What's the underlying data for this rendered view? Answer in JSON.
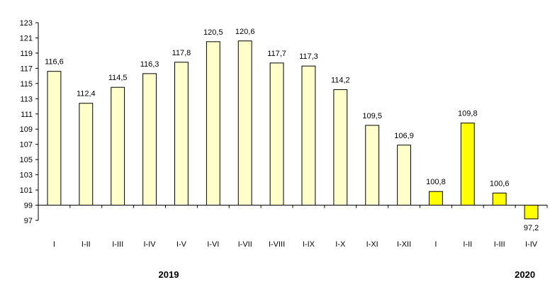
{
  "chart_data": {
    "type": "bar",
    "categories": [
      "I",
      "I-II",
      "I-III",
      "I-IV",
      "I-V",
      "I-VI",
      "I-VII",
      "I-VIII",
      "I-IX",
      "I-X",
      "I-XI",
      "I-XII",
      "I",
      "I-II",
      "I-III",
      "I-IV"
    ],
    "values": [
      116.6,
      112.4,
      114.5,
      116.3,
      117.8,
      120.5,
      120.6,
      117.7,
      117.3,
      114.2,
      109.5,
      106.9,
      100.8,
      109.8,
      100.6,
      97.2
    ],
    "data_labels": [
      "116,6",
      "112,4",
      "114,5",
      "116,3",
      "117,8",
      "120,5",
      "120,6",
      "117,7",
      "117,3",
      "114,2",
      "109,5",
      "106,9",
      "100,8",
      "109,8",
      "100,6",
      "97,2"
    ],
    "groups": [
      {
        "label": "2019",
        "start": 0,
        "end": 11
      },
      {
        "label": "2020",
        "start": 12,
        "end": 15
      }
    ],
    "baseline": 99,
    "ylim": [
      97,
      123
    ],
    "yticks": [
      97,
      99,
      101,
      103,
      105,
      107,
      109,
      111,
      113,
      115,
      117,
      119,
      121,
      123
    ],
    "title": "",
    "xlabel": "",
    "ylabel": "",
    "grid": false,
    "colors": {
      "bar_2019": "#FFFFCC",
      "bar_2020": "#FFFF00",
      "bar_stroke": "#000000",
      "axis": "#000000"
    }
  }
}
